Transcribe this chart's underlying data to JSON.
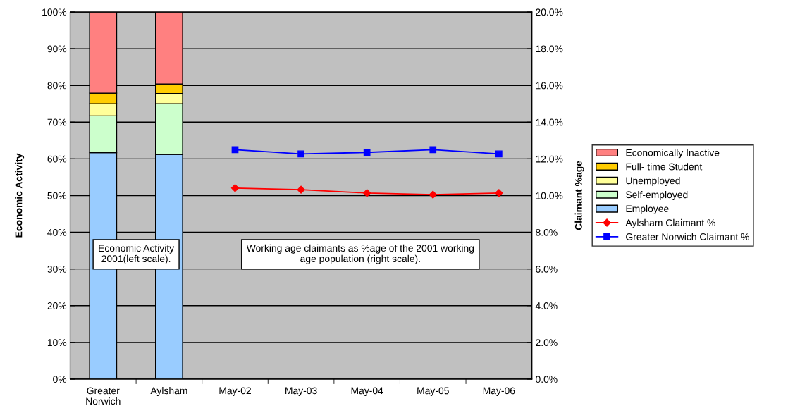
{
  "chart_data": {
    "type": "bar",
    "stacked": true,
    "ylabel": "Economic Activity",
    "y2label": "Claimant %age",
    "categories": [
      "Greater Norwich",
      "Aylsham",
      "May-02",
      "May-03",
      "May-04",
      "May-05",
      "May-06"
    ],
    "series": [
      {
        "name": "Employee",
        "color": "#99ccff",
        "values": [
          61.7,
          61.2,
          null,
          null,
          null,
          null,
          null
        ]
      },
      {
        "name": "Self-employed",
        "color": "#ccffcc",
        "values": [
          10.0,
          13.8,
          null,
          null,
          null,
          null,
          null
        ]
      },
      {
        "name": "Unemployed",
        "color": "#ffff99",
        "values": [
          3.3,
          2.8,
          null,
          null,
          null,
          null,
          null
        ]
      },
      {
        "name": "Full- time Student",
        "color": "#ffcc00",
        "values": [
          2.9,
          2.6,
          null,
          null,
          null,
          null,
          null
        ]
      },
      {
        "name": "Economically Inactive",
        "color": "#ff8080",
        "values": [
          22.1,
          19.6,
          null,
          null,
          null,
          null,
          null
        ]
      },
      {
        "name": "Aylsham Claimant %",
        "type": "line",
        "axis": "y2",
        "marker": "diamond",
        "color": "#ff0000",
        "values": [
          null,
          null,
          10.41,
          10.32,
          10.14,
          10.05,
          10.14
        ]
      },
      {
        "name": "Greater Norwich Claimant %",
        "type": "line",
        "axis": "y2",
        "marker": "square",
        "color": "#0000ff",
        "values": [
          null,
          null,
          12.5,
          12.27,
          12.35,
          12.5,
          12.27
        ]
      }
    ],
    "ylim": [
      0,
      100
    ],
    "yticks": [
      {
        "value": 0,
        "label": "0%"
      },
      {
        "value": 10,
        "label": "10%"
      },
      {
        "value": 20,
        "label": "20%"
      },
      {
        "value": 30,
        "label": "30%"
      },
      {
        "value": 40,
        "label": "40%"
      },
      {
        "value": 50,
        "label": "50%"
      },
      {
        "value": 60,
        "label": "60%"
      },
      {
        "value": 70,
        "label": "70%"
      },
      {
        "value": 80,
        "label": "80%"
      },
      {
        "value": 90,
        "label": "90%"
      },
      {
        "value": 100,
        "label": "100%"
      }
    ],
    "y2lim": [
      0,
      20
    ],
    "y2ticks": [
      {
        "value": 0,
        "label": "0.0%"
      },
      {
        "value": 2,
        "label": "2.0%"
      },
      {
        "value": 4,
        "label": "4.0%"
      },
      {
        "value": 6,
        "label": "6.0%"
      },
      {
        "value": 8,
        "label": "8.0%"
      },
      {
        "value": 10,
        "label": "10.0%"
      },
      {
        "value": 12,
        "label": "12.0%"
      },
      {
        "value": 14,
        "label": "14.0%"
      },
      {
        "value": 16,
        "label": "16.0%"
      },
      {
        "value": 18,
        "label": "18.0%"
      },
      {
        "value": 20,
        "label": "20.0%"
      }
    ],
    "grid": "y",
    "legend": "right",
    "annotations": [
      "Economic Activity\n2001(left scale).",
      "Working age claimants as %age of the 2001 working\nage population (right scale)."
    ]
  }
}
